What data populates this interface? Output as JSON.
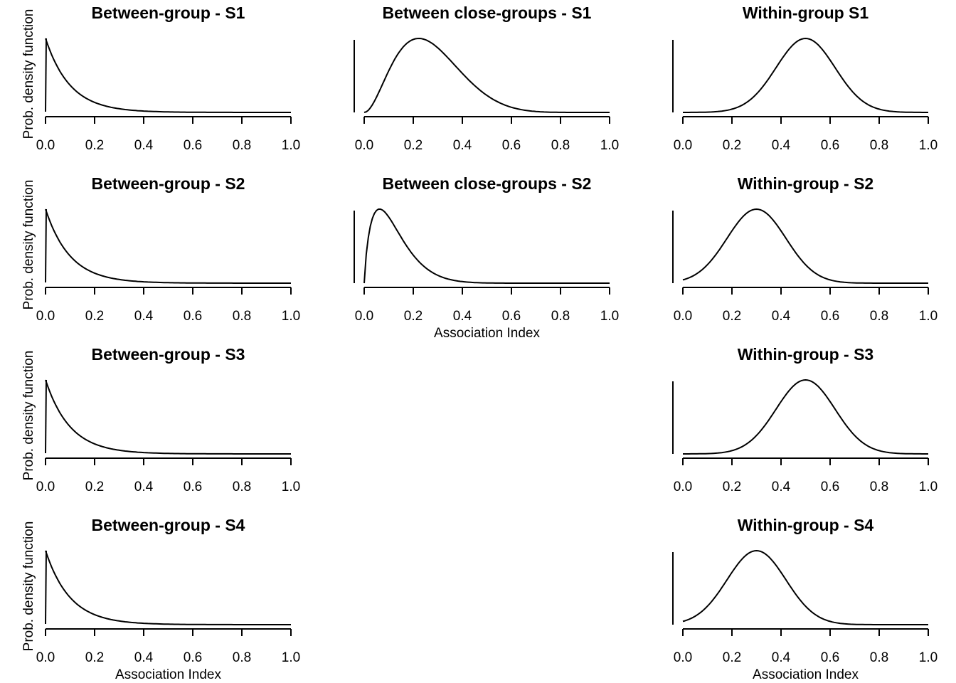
{
  "chart_data": [
    {
      "type": "line",
      "title": "Between-group - S1",
      "xlabel": "",
      "ylabel": "Prob. density function",
      "xlim": [
        0,
        1
      ],
      "xticks": [
        "0.0",
        "0.2",
        "0.4",
        "0.6",
        "0.8",
        "1.0"
      ],
      "distribution": "exponential",
      "params": {
        "rate": 10
      },
      "x": [
        0,
        0.05,
        0.1,
        0.15,
        0.2,
        0.3,
        0.4,
        0.5,
        0.6,
        0.8,
        1.0
      ],
      "y": [
        1.0,
        0.607,
        0.368,
        0.223,
        0.135,
        0.05,
        0.018,
        0.007,
        0.002,
        0.0,
        0.0
      ]
    },
    {
      "type": "line",
      "title": "Between close-groups - S1",
      "xlabel": "",
      "ylabel": "",
      "xlim": [
        0,
        1
      ],
      "xticks": [
        "0.0",
        "0.2",
        "0.4",
        "0.6",
        "0.8",
        "1.0"
      ],
      "distribution": "beta",
      "params": {
        "a": 3,
        "b": 8
      },
      "x": [
        0,
        0.1,
        0.2,
        0.22,
        0.3,
        0.4,
        0.5,
        0.6,
        0.8,
        1.0
      ],
      "y": [
        0.0,
        0.5,
        0.97,
        1.0,
        0.87,
        0.47,
        0.18,
        0.05,
        0.0,
        0.0
      ]
    },
    {
      "type": "line",
      "title": "Within-group S1",
      "xlabel": "",
      "ylabel": "",
      "xlim": [
        0,
        1
      ],
      "xticks": [
        "0.0",
        "0.2",
        "0.4",
        "0.6",
        "0.8",
        "1.0"
      ],
      "distribution": "normal",
      "params": {
        "mean": 0.5,
        "sd": 0.12
      },
      "x": [
        0,
        0.2,
        0.3,
        0.4,
        0.5,
        0.6,
        0.7,
        0.8,
        1.0
      ],
      "y": [
        0.0,
        0.04,
        0.25,
        0.71,
        1.0,
        0.71,
        0.25,
        0.04,
        0.0
      ]
    },
    {
      "type": "line",
      "title": "Between-group - S2",
      "xlabel": "",
      "ylabel": "Prob. density function",
      "xlim": [
        0,
        1
      ],
      "xticks": [
        "0.0",
        "0.2",
        "0.4",
        "0.6",
        "0.8",
        "1.0"
      ],
      "distribution": "exponential",
      "params": {
        "rate": 10
      },
      "x": [
        0,
        0.05,
        0.1,
        0.15,
        0.2,
        0.3,
        0.4,
        0.5,
        0.6,
        0.8,
        1.0
      ],
      "y": [
        1.0,
        0.607,
        0.368,
        0.223,
        0.135,
        0.05,
        0.018,
        0.007,
        0.002,
        0.0,
        0.0
      ]
    },
    {
      "type": "line",
      "title": "Between close-groups - S2",
      "xlabel": "Association Index",
      "ylabel": "",
      "xlim": [
        0,
        1
      ],
      "xticks": [
        "0.0",
        "0.2",
        "0.4",
        "0.6",
        "0.8",
        "1.0"
      ],
      "distribution": "beta",
      "params": {
        "a": 1.8,
        "b": 13
      },
      "x": [
        0,
        0.025,
        0.075,
        0.1,
        0.2,
        0.3,
        0.4,
        0.5,
        0.6,
        0.8,
        1.0
      ],
      "y": [
        0.0,
        0.81,
        0.99,
        0.96,
        0.62,
        0.29,
        0.1,
        0.03,
        0.01,
        0.0,
        0.0
      ]
    },
    {
      "type": "line",
      "title": "Within-group - S2",
      "xlabel": "",
      "ylabel": "",
      "xlim": [
        0,
        1
      ],
      "xticks": [
        "0.0",
        "0.2",
        "0.4",
        "0.6",
        "0.8",
        "1.0"
      ],
      "distribution": "normal",
      "params": {
        "mean": 0.3,
        "sd": 0.12
      },
      "x": [
        0,
        0.1,
        0.2,
        0.3,
        0.4,
        0.5,
        0.6,
        0.8,
        1.0
      ],
      "y": [
        0.04,
        0.25,
        0.71,
        1.0,
        0.71,
        0.25,
        0.04,
        0.0,
        0.0
      ]
    },
    {
      "type": "line",
      "title": "Between-group - S3",
      "xlabel": "",
      "ylabel": "Prob. density function",
      "xlim": [
        0,
        1
      ],
      "xticks": [
        "0.0",
        "0.2",
        "0.4",
        "0.6",
        "0.8",
        "1.0"
      ],
      "distribution": "exponential",
      "params": {
        "rate": 10
      },
      "x": [
        0,
        0.05,
        0.1,
        0.15,
        0.2,
        0.3,
        0.4,
        0.5,
        0.6,
        0.8,
        1.0
      ],
      "y": [
        1.0,
        0.607,
        0.368,
        0.223,
        0.135,
        0.05,
        0.018,
        0.007,
        0.002,
        0.0,
        0.0
      ]
    },
    {
      "type": "line",
      "title": "Within-group - S3",
      "xlabel": "",
      "ylabel": "",
      "xlim": [
        0,
        1
      ],
      "xticks": [
        "0.0",
        "0.2",
        "0.4",
        "0.6",
        "0.8",
        "1.0"
      ],
      "distribution": "normal",
      "params": {
        "mean": 0.5,
        "sd": 0.12
      },
      "x": [
        0,
        0.2,
        0.3,
        0.4,
        0.5,
        0.6,
        0.7,
        0.8,
        1.0
      ],
      "y": [
        0.0,
        0.04,
        0.25,
        0.71,
        1.0,
        0.71,
        0.25,
        0.04,
        0.0
      ]
    },
    {
      "type": "line",
      "title": "Between-group - S4",
      "xlabel": "Association Index",
      "ylabel": "Prob. density function",
      "xlim": [
        0,
        1
      ],
      "xticks": [
        "0.0",
        "0.2",
        "0.4",
        "0.6",
        "0.8",
        "1.0"
      ],
      "distribution": "exponential",
      "params": {
        "rate": 10
      },
      "x": [
        0,
        0.05,
        0.1,
        0.15,
        0.2,
        0.3,
        0.4,
        0.5,
        0.6,
        0.8,
        1.0
      ],
      "y": [
        1.0,
        0.607,
        0.368,
        0.223,
        0.135,
        0.05,
        0.018,
        0.007,
        0.002,
        0.0,
        0.0
      ]
    },
    {
      "type": "line",
      "title": "Within-group - S4",
      "xlabel": "Association Index",
      "ylabel": "",
      "xlim": [
        0,
        1
      ],
      "xticks": [
        "0.0",
        "0.2",
        "0.4",
        "0.6",
        "0.8",
        "1.0"
      ],
      "distribution": "normal",
      "params": {
        "mean": 0.3,
        "sd": 0.12
      },
      "x": [
        0,
        0.1,
        0.2,
        0.3,
        0.4,
        0.5,
        0.6,
        0.8,
        1.0
      ],
      "y": [
        0.04,
        0.25,
        0.71,
        1.0,
        0.71,
        0.25,
        0.04,
        0.0,
        0.0
      ]
    }
  ]
}
